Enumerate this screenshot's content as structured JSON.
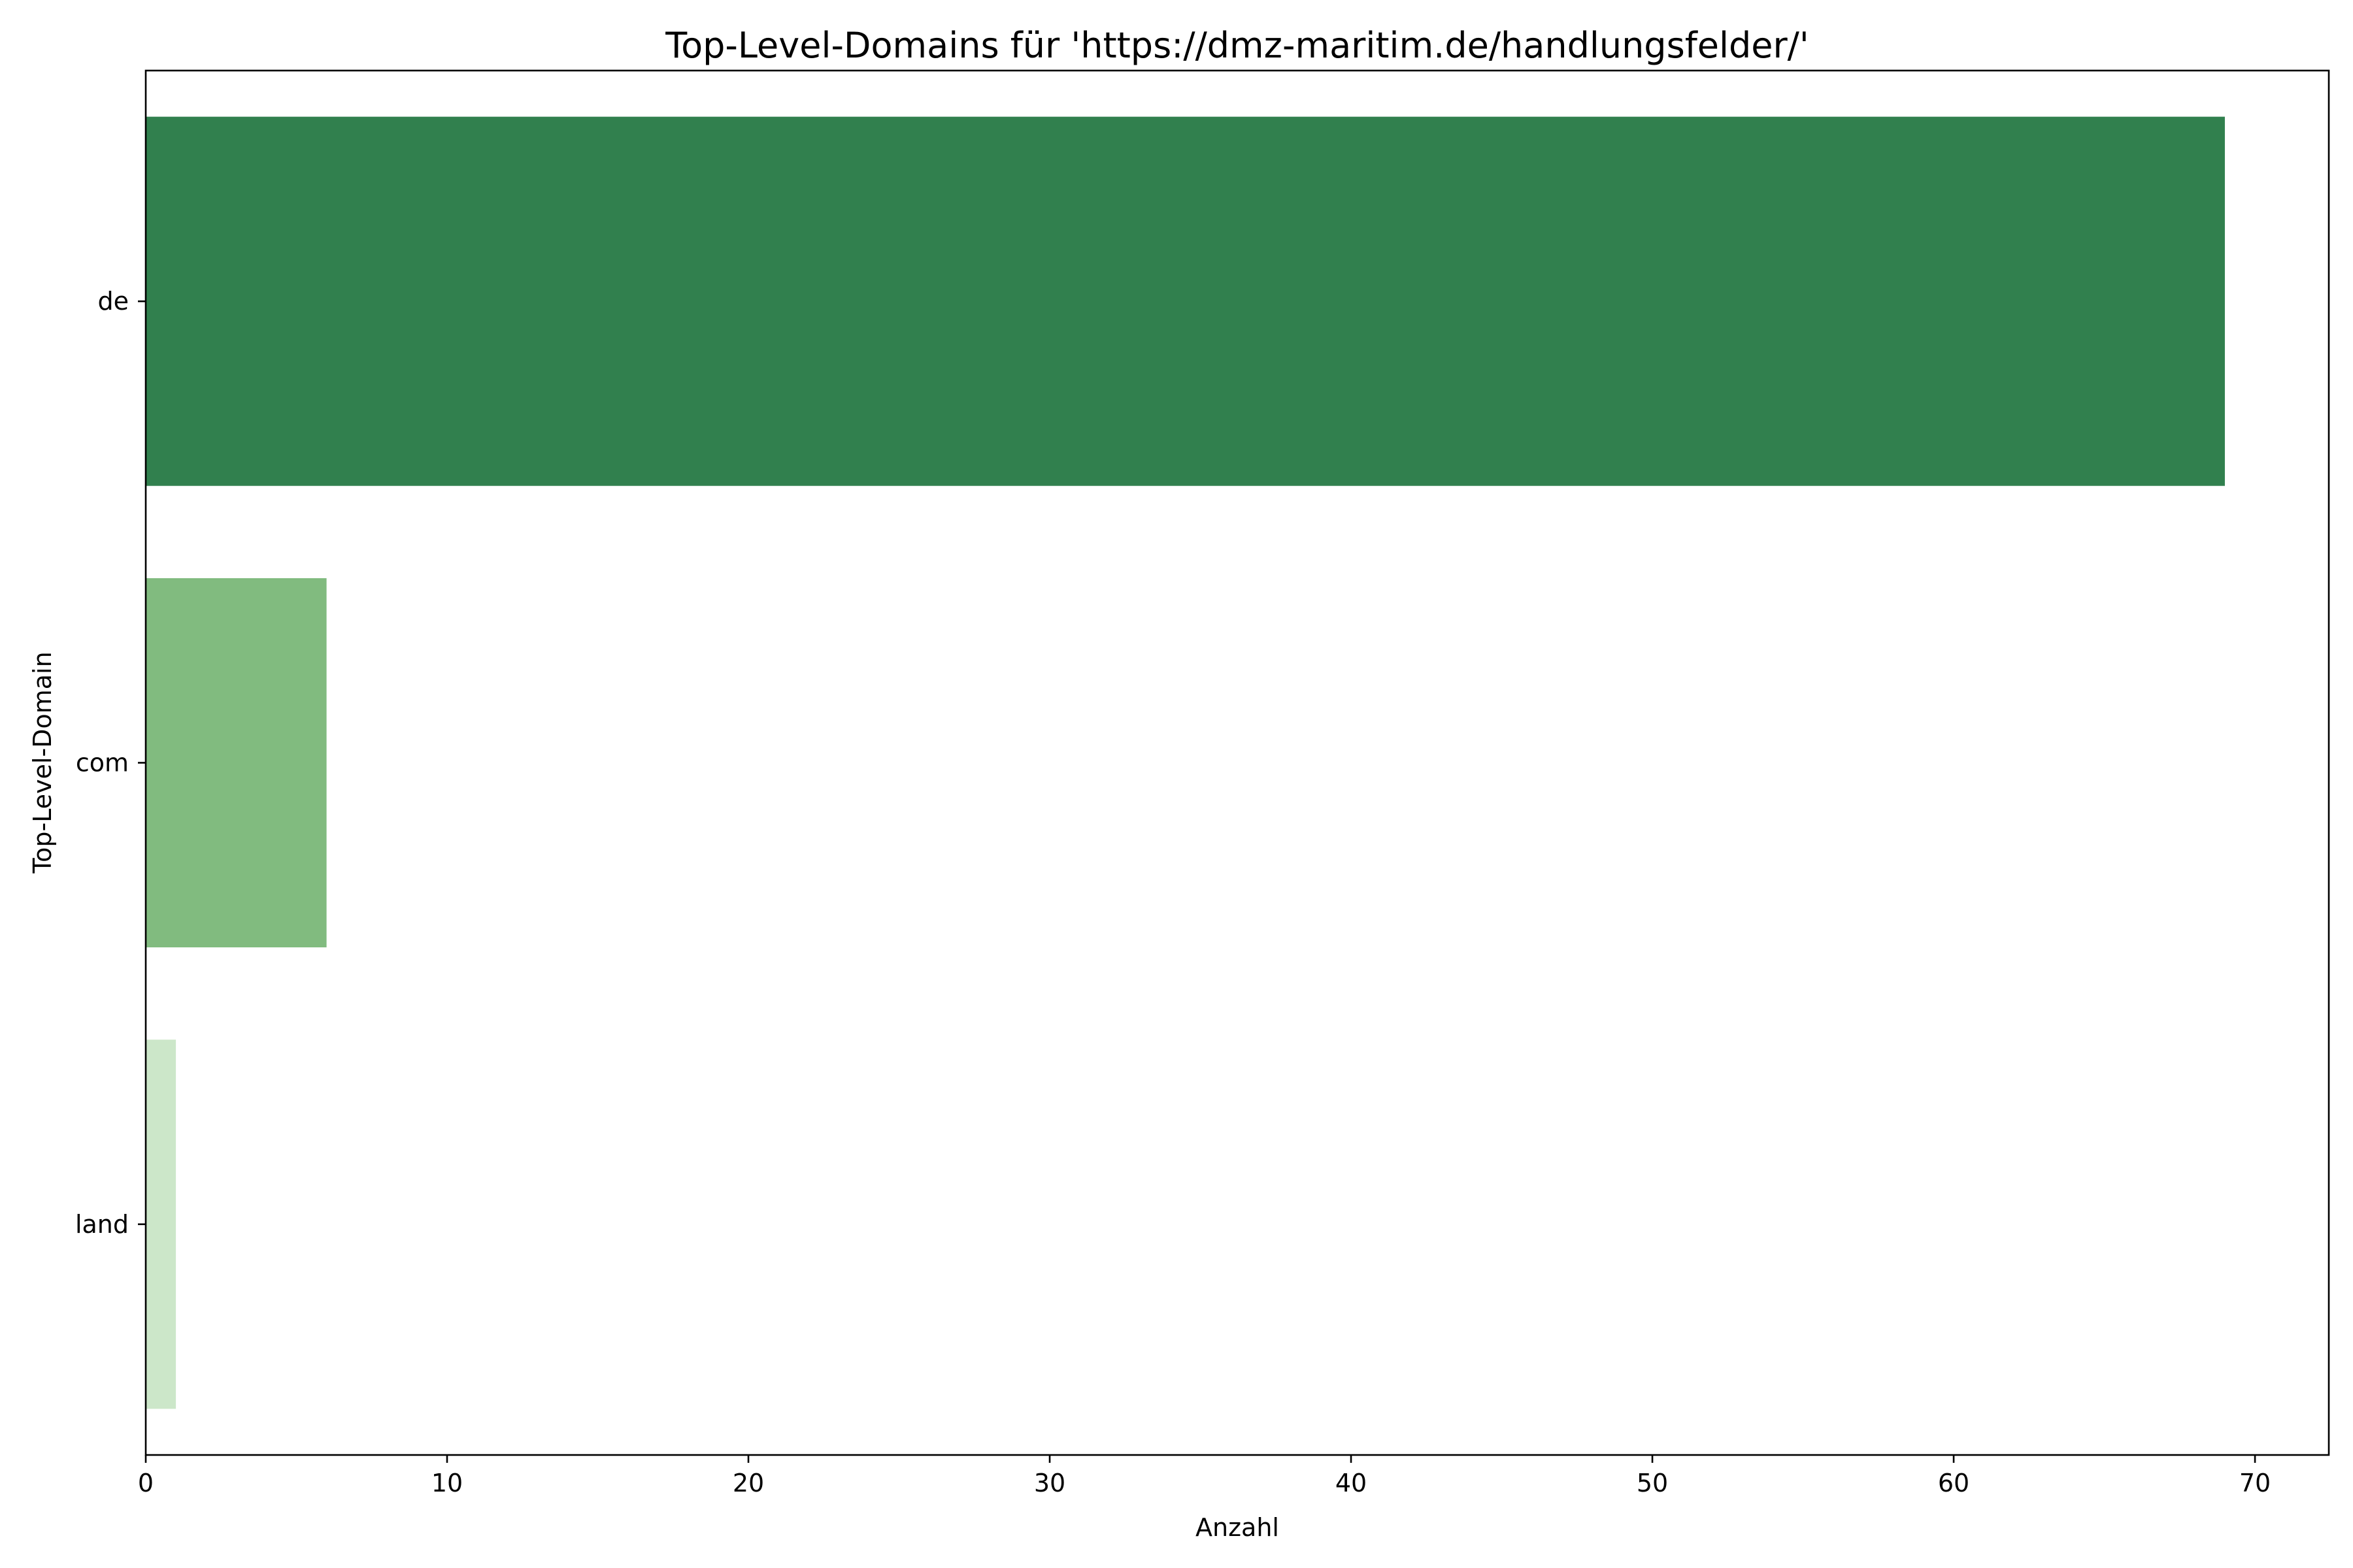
{
  "chart_data": {
    "type": "bar",
    "orientation": "horizontal",
    "title": "Top-Level-Domains für 'https://dmz-maritim.de/handlungsfelder/'",
    "xlabel": "Anzahl",
    "ylabel": "Top-Level-Domain",
    "categories": [
      "de",
      "com",
      "land"
    ],
    "values": [
      69,
      6,
      1
    ],
    "colors": [
      "#31804e",
      "#81bb7f",
      "#cce7c9"
    ],
    "xlim": [
      0,
      72.45
    ],
    "xticks": [
      0,
      10,
      20,
      30,
      40,
      50,
      60,
      70
    ],
    "xtick_labels": [
      "0",
      "10",
      "20",
      "30",
      "40",
      "50",
      "60",
      "70"
    ],
    "grid": false,
    "legend": "none"
  }
}
